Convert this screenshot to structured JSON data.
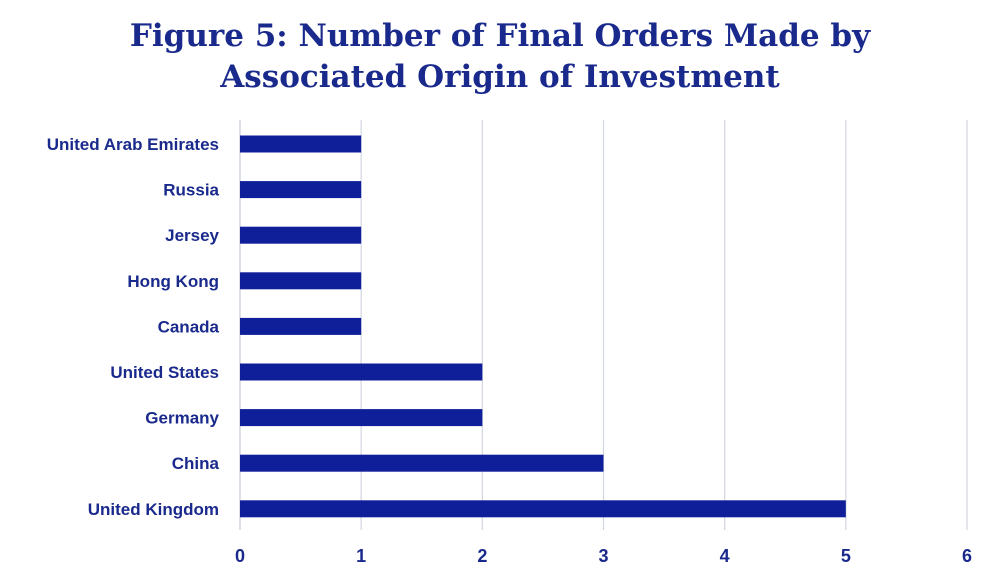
{
  "chart_data": {
    "type": "bar",
    "orientation": "horizontal",
    "title_lines": [
      "Figure 5: Number of Final Orders Made by",
      "Associated Origin of Investment"
    ],
    "categories": [
      "United Arab Emirates",
      "Russia",
      "Jersey",
      "Hong Kong",
      "Canada",
      "United States",
      "Germany",
      "China",
      "United Kingdom"
    ],
    "values": [
      1,
      1,
      1,
      1,
      1,
      2,
      2,
      3,
      5
    ],
    "xlim": [
      0,
      6
    ],
    "xticks": [
      "0",
      "1",
      "2",
      "3",
      "4",
      "5",
      "6"
    ],
    "grid": true,
    "bar_color": "#0f1f99",
    "grid_color": "#d3d6e0",
    "text_color": "#1a2a8c"
  }
}
